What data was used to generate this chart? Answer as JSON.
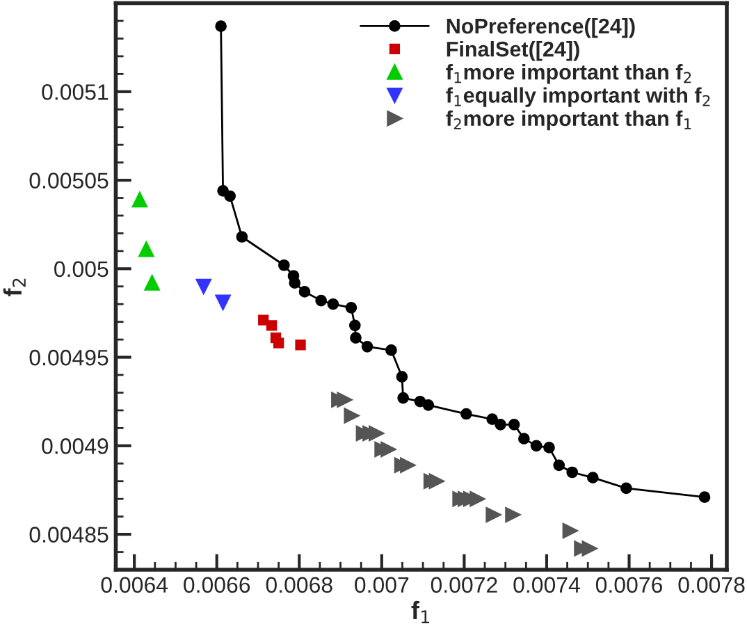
{
  "chart_data": {
    "type": "scatter",
    "xlabel": "f$_{1}$",
    "ylabel": "f$_{2}$",
    "xlim": [
      0.006355,
      0.007837
    ],
    "ylim": [
      0.00483,
      0.00515
    ],
    "xticks": [
      0.0064,
      0.0066,
      0.0068,
      0.007,
      0.0072,
      0.0074,
      0.0076,
      0.0078
    ],
    "yticks": [
      0.00485,
      0.0049,
      0.00495,
      0.005,
      0.00505,
      0.0051
    ],
    "legend": "top right",
    "grid": false,
    "series": [
      {
        "name": "NoPreference([24])",
        "type": "line",
        "marker": "circle",
        "line_style": "solid",
        "color": "#000000",
        "x": [
          0.00661,
          0.006615,
          0.006632,
          0.006661,
          0.006763,
          0.006786,
          0.006789,
          0.006813,
          0.006853,
          0.006882,
          0.006926,
          0.006935,
          0.006937,
          0.006965,
          0.007023,
          0.007049,
          0.007052,
          0.007093,
          0.007113,
          0.007205,
          0.007268,
          0.007288,
          0.007321,
          0.007345,
          0.007375,
          0.007406,
          0.00743,
          0.007462,
          0.007512,
          0.007593,
          0.007783
        ],
        "values": [
          0.005137,
          0.005044,
          0.005041,
          0.005018,
          0.005002,
          0.004996,
          0.004992,
          0.004987,
          0.004982,
          0.00498,
          0.004978,
          0.004968,
          0.004961,
          0.004956,
          0.004954,
          0.004939,
          0.004927,
          0.004925,
          0.004923,
          0.004918,
          0.004915,
          0.004912,
          0.004912,
          0.004904,
          0.0049,
          0.004899,
          0.004889,
          0.004885,
          0.004882,
          0.004876,
          0.004871
        ]
      },
      {
        "name": "FinalSet([24])",
        "marker": "square",
        "color": "#cc0000",
        "x": [
          0.006713,
          0.006733,
          0.006743,
          0.00675,
          0.006803
        ],
        "values": [
          0.004971,
          0.004968,
          0.004961,
          0.004958,
          0.004957
        ]
      },
      {
        "name": "f$_{1}$more important than f$_{2}$",
        "marker": "triangle",
        "color": "#00cc00",
        "x": [
          0.006413,
          0.006429,
          0.006443
        ],
        "values": [
          0.005039,
          0.005011,
          0.004992
        ]
      },
      {
        "name": "f$_{1}$equally important with f$_{2}$",
        "marker": "triangle_down",
        "color": "#3333ff",
        "x": [
          0.006568,
          0.006615
        ],
        "values": [
          0.00499,
          0.004981
        ]
      },
      {
        "name": "f$_{2}$more important than f$_{1}$",
        "marker": "triangle_right",
        "color": "#555555",
        "x": [
          0.006896,
          0.00691,
          0.006927,
          0.006956,
          0.006972,
          0.006987,
          0.007001,
          0.007016,
          0.007049,
          0.007063,
          0.00712,
          0.007133,
          0.00719,
          0.007203,
          0.007216,
          0.007232,
          0.007271,
          0.007318,
          0.007457,
          0.007485,
          0.007504
        ],
        "values": [
          0.004926,
          0.004926,
          0.004917,
          0.004907,
          0.004907,
          0.004907,
          0.004898,
          0.004898,
          0.004889,
          0.004889,
          0.00488,
          0.00488,
          0.00487,
          0.00487,
          0.00487,
          0.00487,
          0.004861,
          0.004861,
          0.004852,
          0.004842,
          0.004842
        ]
      }
    ]
  }
}
